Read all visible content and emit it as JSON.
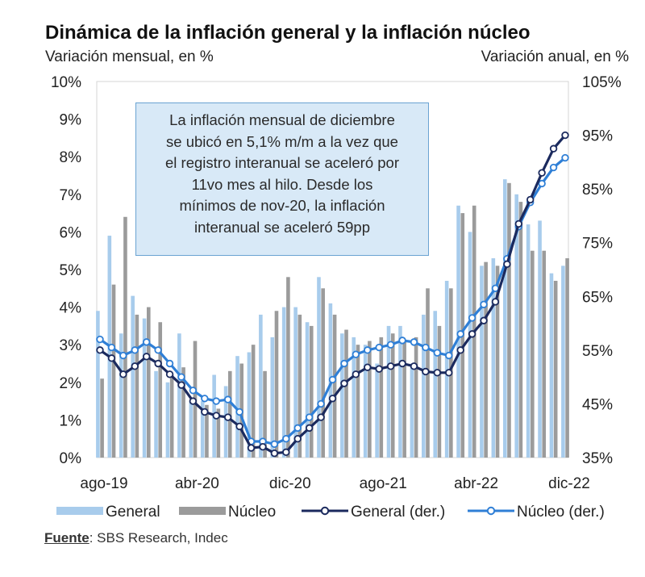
{
  "chart_data": {
    "type": "bar+line",
    "title": "Dinámica de la inflación general y la inflación núcleo",
    "ylabel_left": "Variación mensual, en %",
    "ylabel_right": "Variación anual, en %",
    "ylim_left": [
      0,
      10
    ],
    "ylim_right": [
      35,
      105
    ],
    "yticks_left": [
      "0%",
      "1%",
      "2%",
      "3%",
      "4%",
      "5%",
      "6%",
      "7%",
      "8%",
      "9%",
      "10%"
    ],
    "yticks_right": [
      "35%",
      "45%",
      "55%",
      "65%",
      "75%",
      "85%",
      "95%",
      "105%"
    ],
    "yticks_right_values": [
      35,
      45,
      55,
      65,
      75,
      85,
      95,
      105
    ],
    "x_tick_labels": [
      {
        "label": "ago-19",
        "index": 0
      },
      {
        "label": "abr-20",
        "index": 8
      },
      {
        "label": "dic-20",
        "index": 16
      },
      {
        "label": "ago-21",
        "index": 24
      },
      {
        "label": "abr-22",
        "index": 32
      },
      {
        "label": "dic-22",
        "index": 40
      }
    ],
    "categories": [
      "ago-19",
      "sep-19",
      "oct-19",
      "nov-19",
      "dic-19",
      "ene-20",
      "feb-20",
      "mar-20",
      "abr-20",
      "may-20",
      "jun-20",
      "jul-20",
      "ago-20",
      "sep-20",
      "oct-20",
      "nov-20",
      "dic-20",
      "ene-21",
      "feb-21",
      "mar-21",
      "abr-21",
      "may-21",
      "jun-21",
      "jul-21",
      "ago-21",
      "sep-21",
      "oct-21",
      "nov-21",
      "dic-21",
      "ene-22",
      "feb-22",
      "mar-22",
      "abr-22",
      "may-22",
      "jun-22",
      "jul-22",
      "ago-22",
      "sep-22",
      "oct-22",
      "nov-22",
      "dic-22"
    ],
    "series": [
      {
        "name": "General",
        "axis": "left",
        "kind": "bar",
        "color": "#a8ccec",
        "values": [
          3.9,
          5.9,
          3.3,
          4.3,
          3.7,
          2.3,
          2.0,
          3.3,
          1.5,
          1.5,
          2.2,
          1.9,
          2.7,
          2.8,
          3.8,
          3.2,
          4.0,
          4.0,
          3.6,
          4.8,
          4.1,
          3.3,
          3.2,
          3.0,
          2.5,
          3.5,
          3.5,
          2.5,
          3.8,
          3.9,
          4.7,
          6.7,
          6.0,
          5.1,
          5.3,
          7.4,
          7.0,
          6.2,
          6.3,
          4.9,
          5.1
        ]
      },
      {
        "name": "Núcleo",
        "axis": "left",
        "kind": "bar",
        "color": "#9b9b9b",
        "values": [
          2.1,
          4.6,
          6.4,
          3.8,
          4.0,
          3.6,
          2.2,
          2.4,
          3.1,
          1.4,
          1.3,
          2.3,
          2.5,
          3.0,
          2.3,
          3.9,
          4.8,
          3.8,
          3.5,
          4.5,
          3.8,
          3.4,
          3.0,
          3.1,
          3.2,
          3.3,
          3.1,
          3.2,
          4.5,
          3.5,
          4.5,
          6.5,
          6.7,
          5.2,
          5.1,
          7.3,
          6.8,
          5.5,
          5.5,
          4.7,
          5.3
        ]
      },
      {
        "name": "General (der.)",
        "axis": "right",
        "kind": "line",
        "color": "#1b2a5e",
        "values": [
          55.0,
          53.5,
          50.5,
          52.0,
          53.8,
          52.5,
          50.5,
          48.5,
          45.5,
          43.5,
          42.8,
          42.5,
          40.8,
          36.8,
          37.0,
          35.8,
          36.0,
          38.5,
          40.5,
          42.5,
          46.0,
          48.8,
          50.5,
          51.8,
          51.5,
          52.0,
          52.5,
          52.0,
          51.0,
          50.8,
          50.8,
          55.0,
          58.0,
          60.5,
          64.0,
          71.0,
          78.5,
          83.0,
          88.0,
          92.5,
          95.0
        ]
      },
      {
        "name": "Núcleo (der.)",
        "axis": "right",
        "kind": "line",
        "color": "#2f7fd6",
        "values": [
          57.0,
          55.5,
          54.0,
          55.0,
          56.5,
          55.0,
          52.5,
          50.0,
          47.5,
          46.0,
          45.5,
          45.8,
          43.5,
          38.0,
          38.0,
          37.5,
          38.5,
          40.5,
          42.5,
          45.0,
          49.5,
          52.5,
          54.2,
          55.0,
          55.5,
          56.0,
          56.8,
          56.5,
          55.5,
          54.5,
          54.0,
          58.0,
          61.0,
          63.5,
          66.5,
          72.0,
          78.0,
          82.5,
          86.0,
          89.0,
          90.8
        ]
      }
    ],
    "annotation": [
      "La inflación mensual de diciembre",
      "se ubicó en 5,1% m/m a la vez que",
      "el registro interanual se aceleró por",
      "11vo mes al hilo. Desde los",
      "mínimos de nov-20, la inflación",
      "interanual se aceleró 59pp"
    ],
    "legend": [
      {
        "label": "General",
        "style": "bar",
        "color": "#a8ccec"
      },
      {
        "label": "Núcleo",
        "style": "bar",
        "color": "#9b9b9b"
      },
      {
        "label": "General (der.)",
        "style": "line-marker",
        "color": "#1b2a5e"
      },
      {
        "label": "Núcleo (der.)",
        "style": "line-marker",
        "color": "#2f7fd6"
      }
    ],
    "legend_position": "bottom"
  },
  "source": {
    "label": "Fuente",
    "text": ": SBS Research, Indec"
  }
}
